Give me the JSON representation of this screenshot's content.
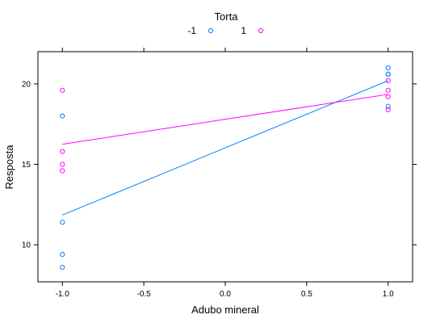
{
  "chart_data": {
    "type": "scatter",
    "xlabel": "Adubo mineral",
    "ylabel": "Resposta",
    "xlim": [
      -1.15,
      1.15
    ],
    "ylim": [
      7.7,
      22.0
    ],
    "x_ticks": [
      -1.0,
      -0.5,
      0.0,
      0.5,
      1.0
    ],
    "x_tick_labels": [
      "-1.0",
      "-0.5",
      "0.0",
      "0.5",
      "1.0"
    ],
    "y_ticks": [
      10,
      15,
      20
    ],
    "y_tick_labels": [
      "10",
      "15",
      "20"
    ],
    "grid": false,
    "legend": {
      "title": "Torta",
      "position": "top"
    },
    "series": [
      {
        "name": "-1",
        "color": "#0080ff",
        "points": [
          {
            "x": -1.0,
            "y": 18.0
          },
          {
            "x": -1.0,
            "y": 11.4
          },
          {
            "x": -1.0,
            "y": 9.4
          },
          {
            "x": -1.0,
            "y": 8.6
          },
          {
            "x": 1.0,
            "y": 21.0
          },
          {
            "x": 1.0,
            "y": 20.6
          },
          {
            "x": 1.0,
            "y": 20.6
          },
          {
            "x": 1.0,
            "y": 18.6
          }
        ],
        "fit": [
          {
            "x": -1.0,
            "y": 11.85
          },
          {
            "x": 1.0,
            "y": 20.2
          }
        ]
      },
      {
        "name": "1",
        "color": "#ff00ff",
        "points": [
          {
            "x": -1.0,
            "y": 19.6
          },
          {
            "x": -1.0,
            "y": 15.8
          },
          {
            "x": -1.0,
            "y": 15.0
          },
          {
            "x": -1.0,
            "y": 14.6
          },
          {
            "x": 1.0,
            "y": 20.2
          },
          {
            "x": 1.0,
            "y": 19.6
          },
          {
            "x": 1.0,
            "y": 19.2
          },
          {
            "x": 1.0,
            "y": 18.4
          }
        ],
        "fit": [
          {
            "x": -1.0,
            "y": 16.25
          },
          {
            "x": 1.0,
            "y": 19.35
          }
        ]
      }
    ]
  }
}
